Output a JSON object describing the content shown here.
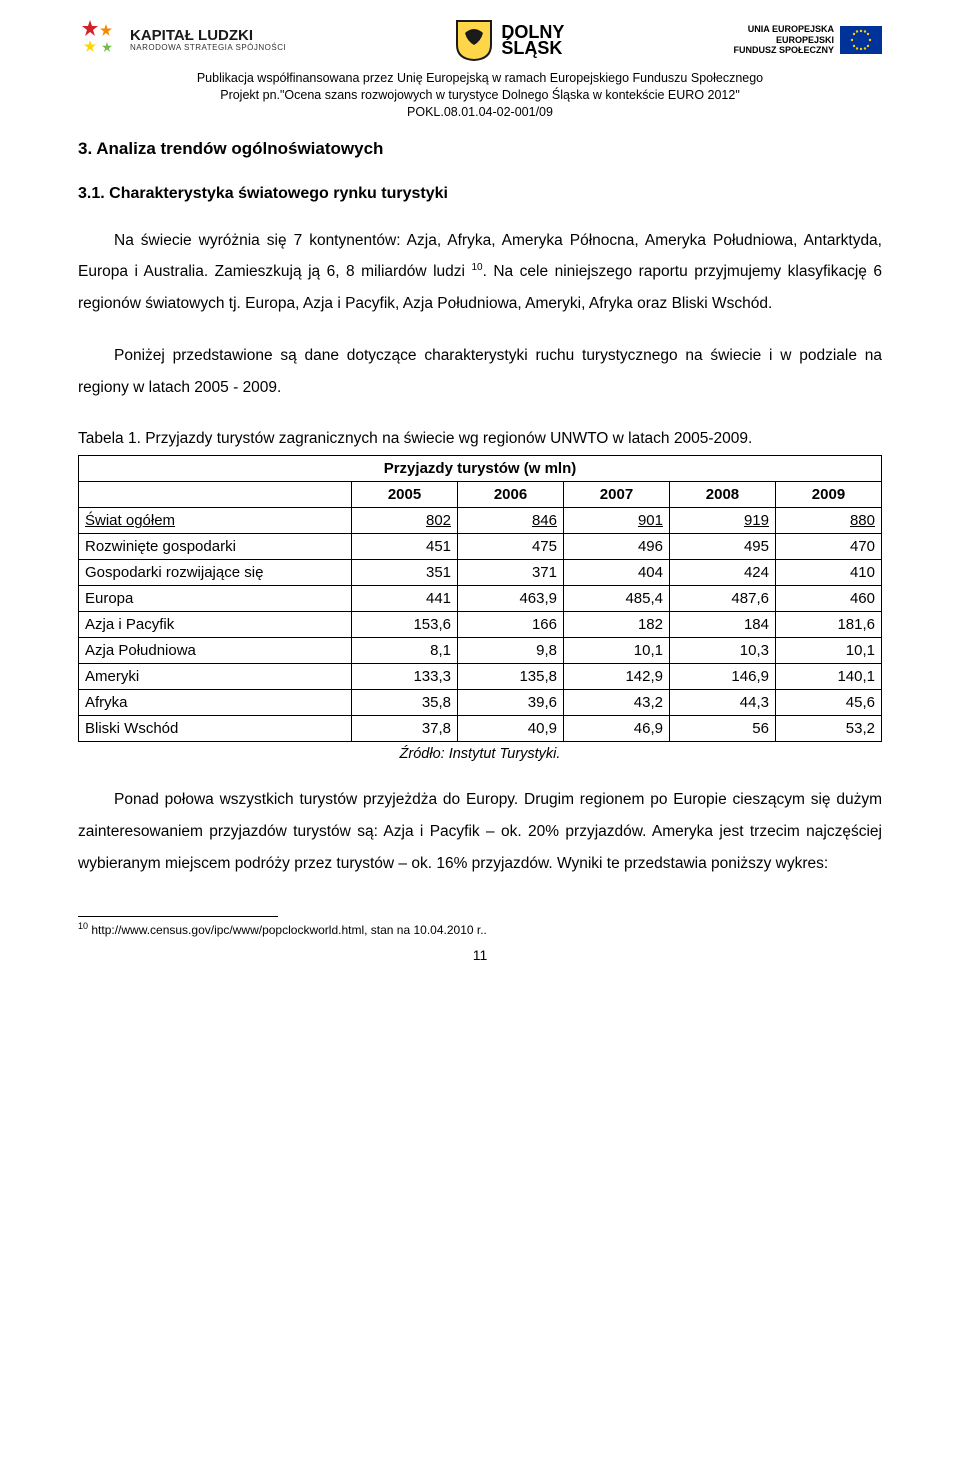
{
  "logos": {
    "kl_title": "KAPITAŁ LUDZKI",
    "kl_sub": "NARODOWA STRATEGIA SPÓJNOŚCI",
    "ds_line1": "DOLNY",
    "ds_line2": "ŚLĄSK",
    "eu_line1": "UNIA EUROPEJSKA",
    "eu_line2": "EUROPEJSKI",
    "eu_line3": "FUNDUSZ SPOŁECZNY"
  },
  "pubinfo": {
    "l1": "Publikacja współfinansowana przez Unię Europejską w ramach Europejskiego Funduszu Społecznego",
    "l2": "Projekt pn.\"Ocena szans rozwojowych w turystyce Dolnego Śląska w kontekście EURO 2012\"",
    "l3": "POKL.08.01.04-02-001/09"
  },
  "headings": {
    "h1": "3. Analiza trendów ogólnoświatowych",
    "h2": "3.1. Charakterystyka światowego rynku turystyki"
  },
  "para1": "Na świecie wyróżnia się 7 kontynentów: Azja, Afryka, Ameryka Północna, Ameryka Południowa, Antarktyda, Europa i Australia. Zamieszkują ją 6, 8 miliardów ludzi ",
  "para1_ref": "10",
  "para1_cont": ". Na cele niniejszego raportu przyjmujemy klasyfikację 6 regionów światowych tj. Europa, Azja i Pacyfik, Azja Południowa, Ameryki, Afryka oraz Bliski Wschód.",
  "para2": "Poniżej przedstawione są dane dotyczące charakterystyki ruchu turystycznego na świecie i w podziale na regiony w latach 2005 - 2009.",
  "table": {
    "caption": "Tabela 1. Przyjazdy turystów zagranicznych na świecie wg regionów UNWTO w latach 2005-2009.",
    "title": "Przyjazdy turystów (w mln)",
    "years": [
      "2005",
      "2006",
      "2007",
      "2008",
      "2009"
    ],
    "col_widths_pct": [
      34,
      13.2,
      13.2,
      13.2,
      13.2,
      13.2
    ],
    "rows": [
      {
        "label": "Świat ogółem",
        "vals": [
          "802",
          "846",
          "901",
          "919",
          "880"
        ],
        "totals": true
      },
      {
        "label": "Rozwinięte gospodarki",
        "vals": [
          "451",
          "475",
          "496",
          "495",
          "470"
        ]
      },
      {
        "label": "Gospodarki rozwijające się",
        "vals": [
          "351",
          "371",
          "404",
          "424",
          "410"
        ]
      },
      {
        "label": "Europa",
        "vals": [
          "441",
          "463,9",
          "485,4",
          "487,6",
          "460"
        ]
      },
      {
        "label": "Azja i Pacyfik",
        "vals": [
          "153,6",
          "166",
          "182",
          "184",
          "181,6"
        ]
      },
      {
        "label": "Azja Południowa",
        "vals": [
          "8,1",
          "9,8",
          "10,1",
          "10,3",
          "10,1"
        ]
      },
      {
        "label": "Ameryki",
        "vals": [
          "133,3",
          "135,8",
          "142,9",
          "146,9",
          "140,1"
        ]
      },
      {
        "label": "Afryka",
        "vals": [
          "35,8",
          "39,6",
          "43,2",
          "44,3",
          "45,6"
        ]
      },
      {
        "label": "Bliski Wschód",
        "vals": [
          "37,8",
          "40,9",
          "46,9",
          "56",
          "53,2"
        ]
      }
    ],
    "source": "Źródło: Instytut Turystyki."
  },
  "para3": "Ponad połowa wszystkich turystów przyjeżdża do Europy. Drugim regionem po Europie cieszącym się dużym zainteresowaniem przyjazdów turystów są: Azja i Pacyfik – ok. 20% przyjazdów. Ameryka jest trzecim najczęściej wybieranym miejscem podróży przez turystów – ok. 16% przyjazdów. Wyniki te przedstawia poniższy wykres:",
  "footnote": {
    "num": "10",
    "text": " http://www.census.gov/ipc/www/popclockworld.html, stan na 10.04.2010 r.."
  },
  "page_number": "11",
  "colors": {
    "text": "#000000",
    "background": "#ffffff",
    "border": "#000000",
    "eu_flag_bg": "#003399",
    "eu_stars": "#ffcc00",
    "kl_star_colors": [
      "#d4202a",
      "#f18a00",
      "#ffd500",
      "#6fbf44"
    ],
    "ds_shield_bg": "#ffd54a",
    "ds_shield_stroke": "#1a1a1a",
    "ds_eagle": "#1a1a1a"
  }
}
